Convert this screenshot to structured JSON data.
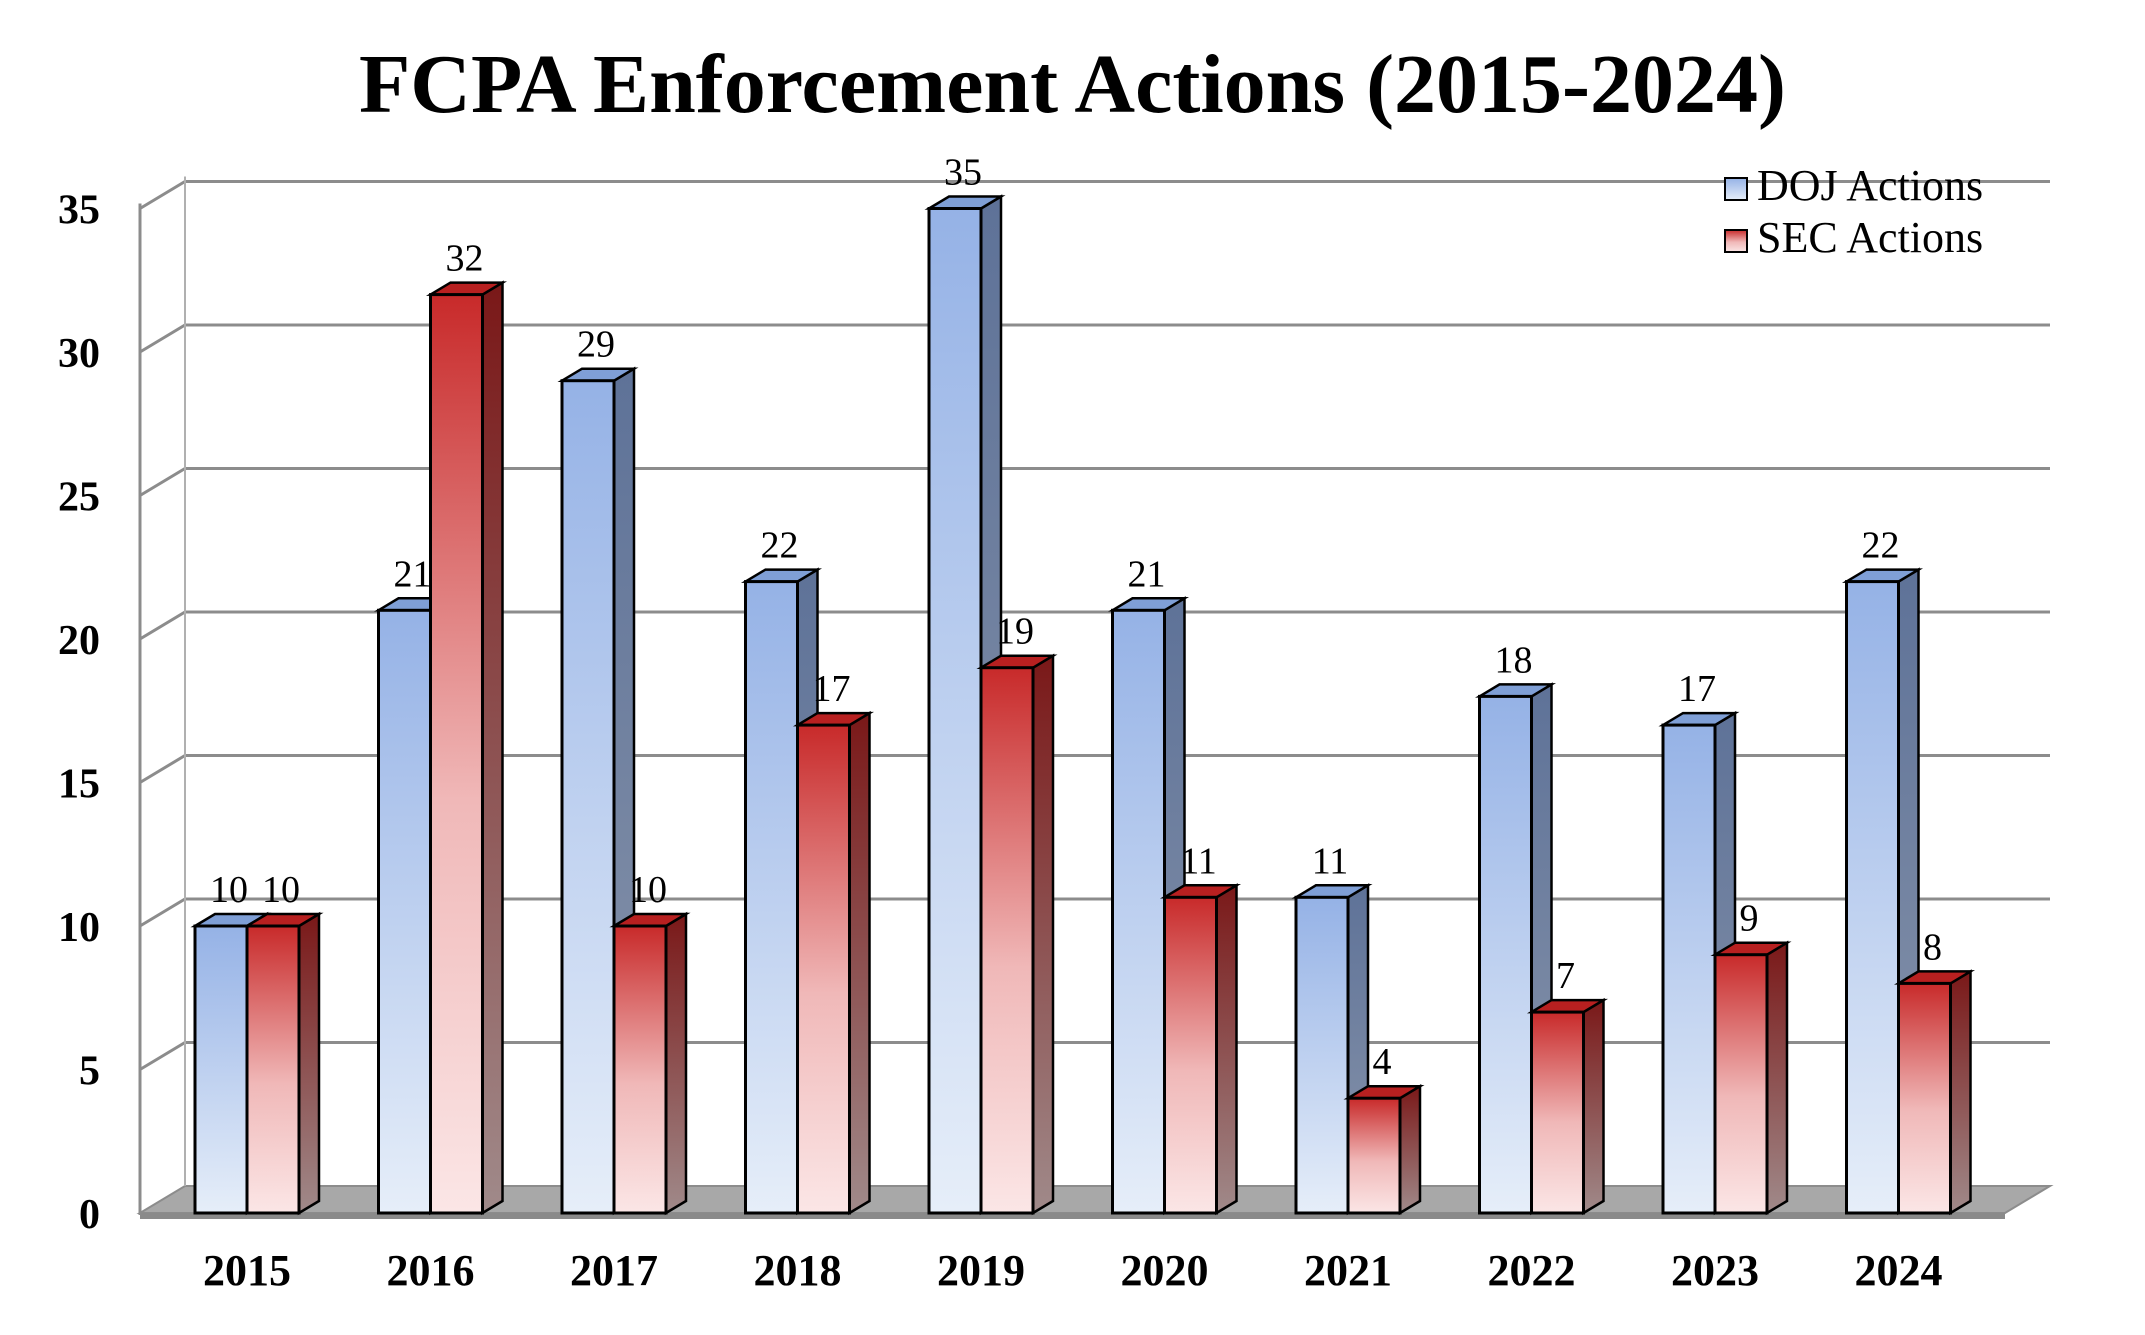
{
  "chart_data": {
    "type": "bar",
    "title": "FCPA Enforcement Actions (2015-2024)",
    "xlabel": "",
    "ylabel": "",
    "categories": [
      "2015",
      "2016",
      "2017",
      "2018",
      "2019",
      "2020",
      "2021",
      "2022",
      "2023",
      "2024"
    ],
    "series": [
      {
        "name": "DOJ Actions",
        "values": [
          10,
          21,
          29,
          22,
          35,
          21,
          11,
          18,
          17,
          22
        ],
        "color": "#9db6e6"
      },
      {
        "name": "SEC Actions",
        "values": [
          10,
          32,
          10,
          17,
          19,
          11,
          4,
          7,
          9,
          8
        ],
        "color": "#c62a2a"
      }
    ],
    "ylim": [
      0,
      35
    ],
    "yticks": [
      "0",
      "5",
      "10",
      "15",
      "20",
      "25",
      "30",
      "35"
    ],
    "grid": true,
    "legend_position": "top-right",
    "style": "3d"
  }
}
